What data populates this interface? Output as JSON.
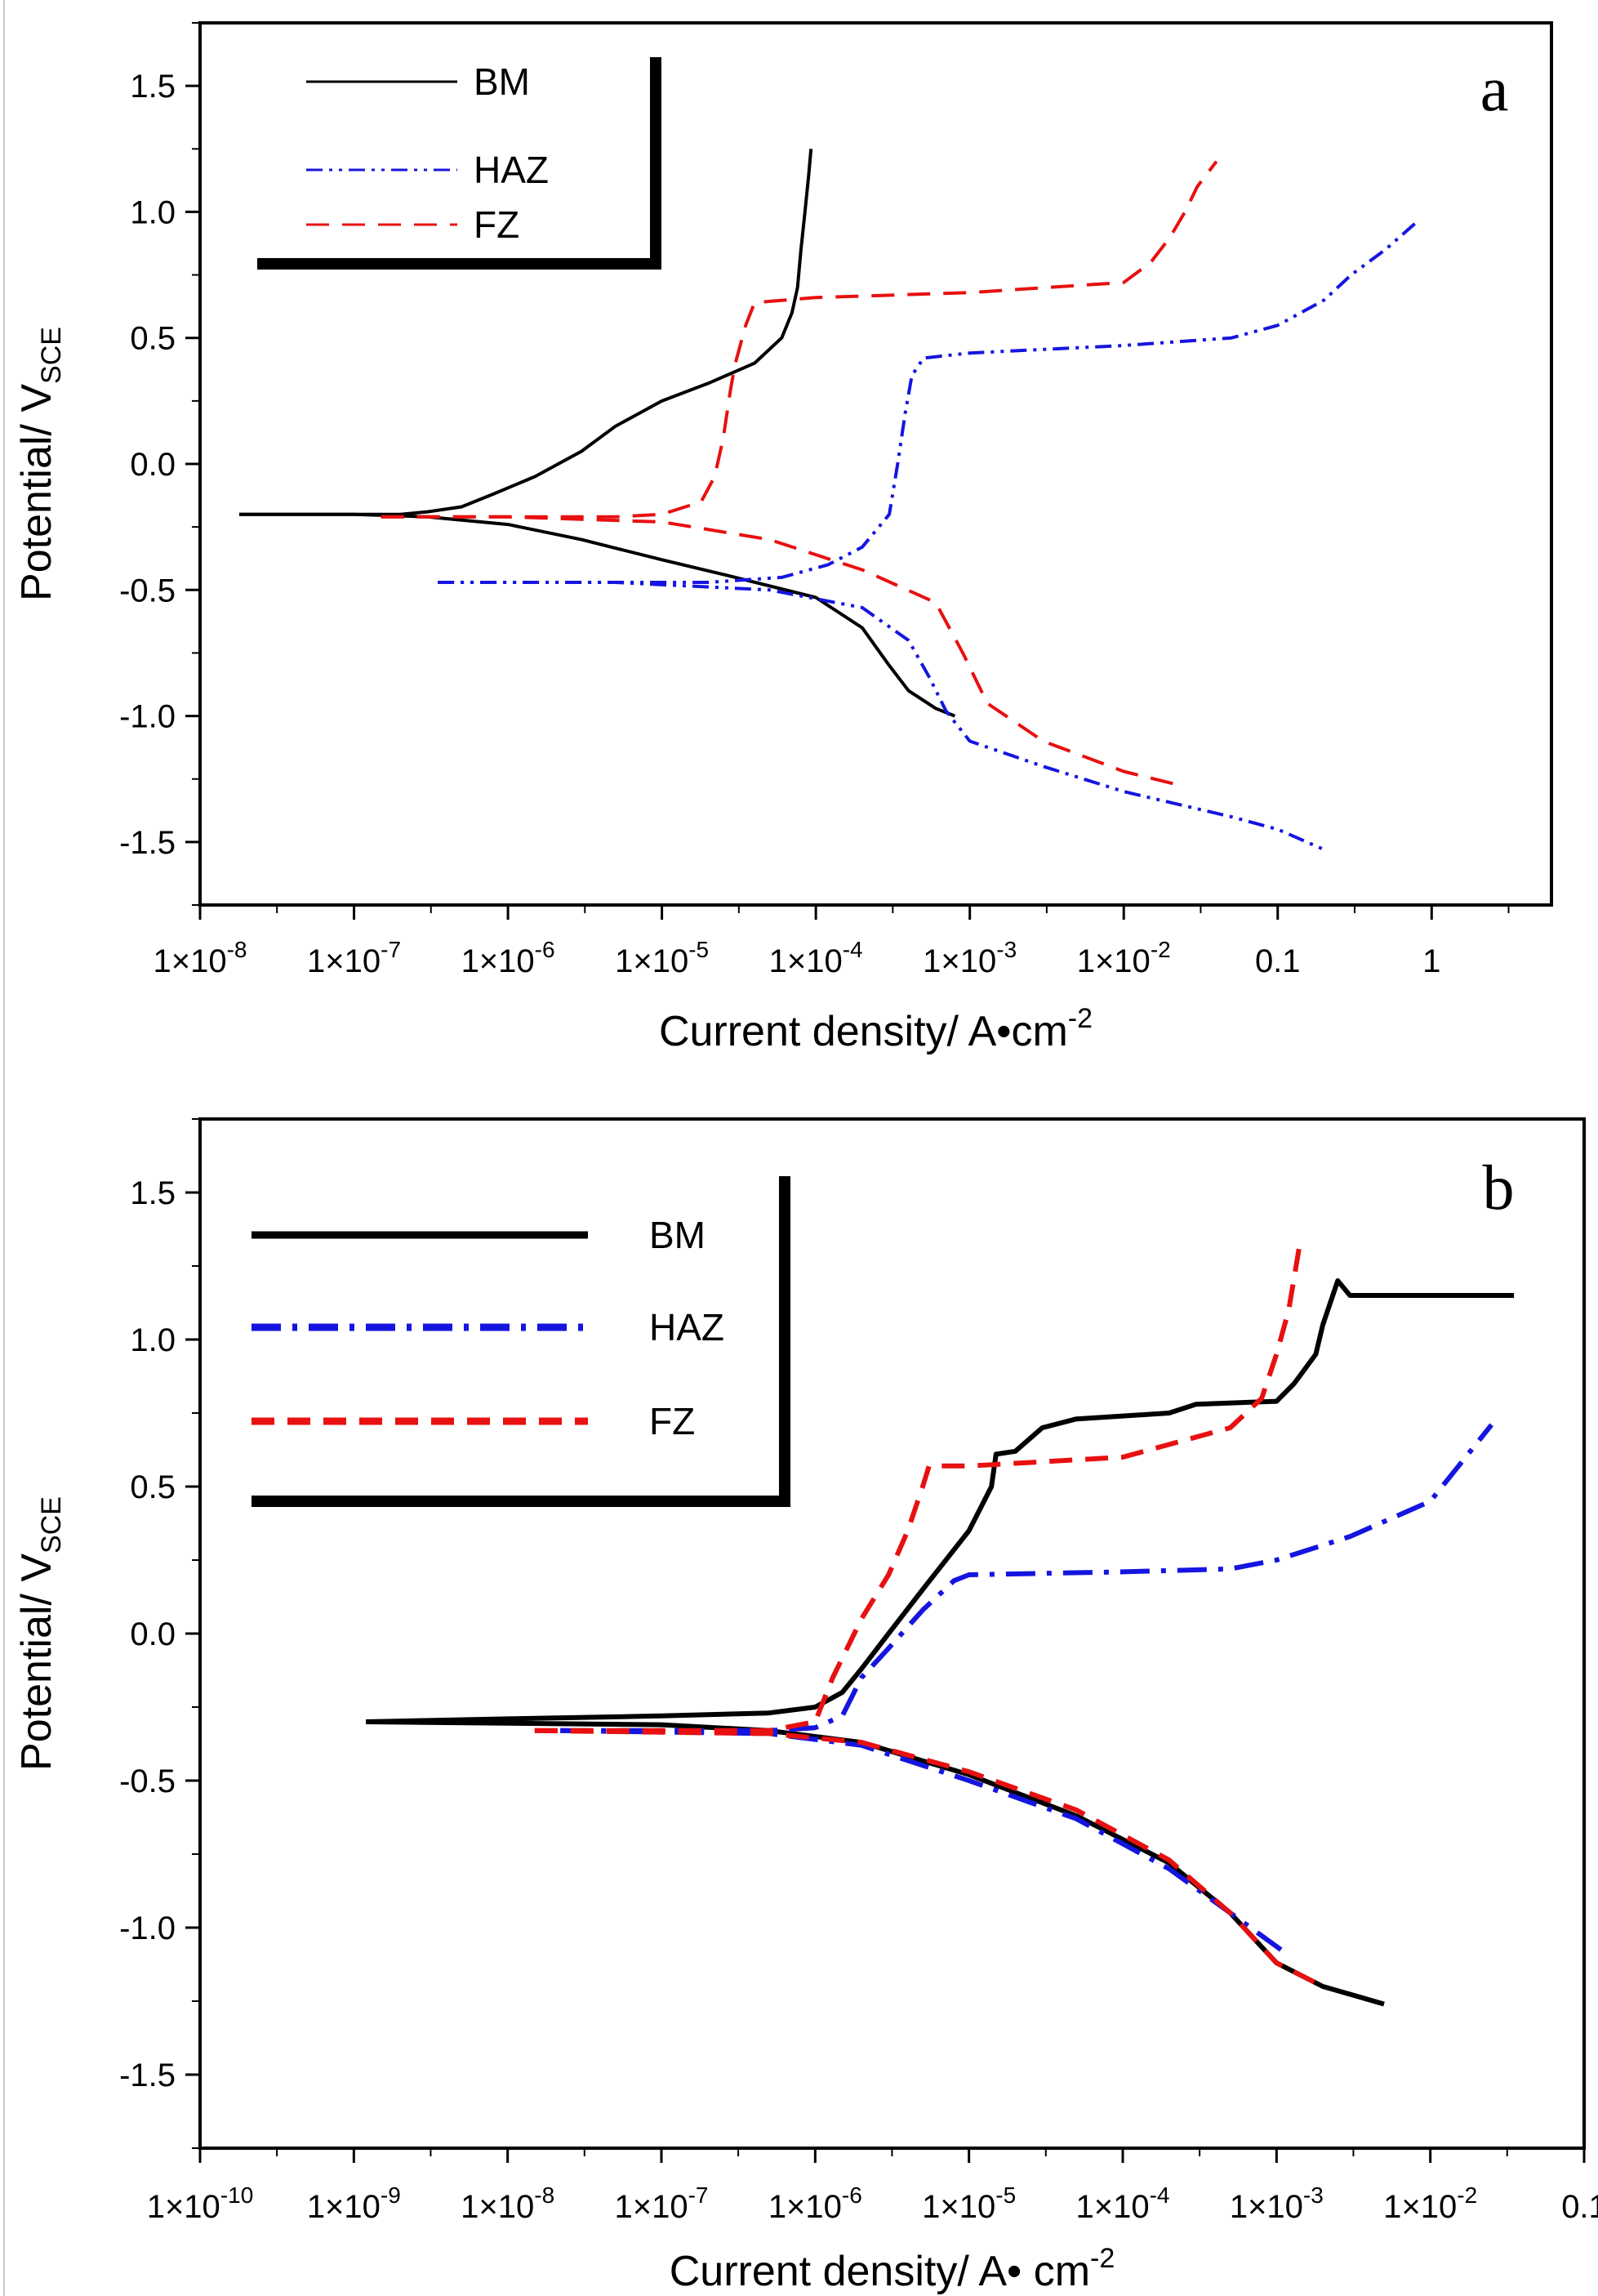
{
  "chart_data": [
    {
      "type": "line",
      "panel_label": "a",
      "xscale": "log",
      "xlabel": {
        "main": "Current density/ A•cm",
        "sup": "-2"
      },
      "ylabel": {
        "main": "Potential/ V",
        "sub": "SCE"
      },
      "xlim": [
        1e-08,
        6
      ],
      "ylim": [
        -1.75,
        1.75
      ],
      "x_ticks": [
        {
          "value": 1e-08,
          "base": "1×10",
          "exp": "-8"
        },
        {
          "value": 1e-07,
          "base": "1×10",
          "exp": "-7"
        },
        {
          "value": 1e-06,
          "base": "1×10",
          "exp": "-6"
        },
        {
          "value": 1e-05,
          "base": "1×10",
          "exp": "-5"
        },
        {
          "value": 0.0001,
          "base": "1×10",
          "exp": "-4"
        },
        {
          "value": 0.001,
          "base": "1×10",
          "exp": "-3"
        },
        {
          "value": 0.01,
          "base": "1×10",
          "exp": "-2"
        },
        {
          "value": 0.1,
          "base": "0.1",
          "exp": ""
        },
        {
          "value": 1,
          "base": "1",
          "exp": ""
        }
      ],
      "y_ticks": [
        {
          "value": 1.5,
          "label": "1.5"
        },
        {
          "value": 1.0,
          "label": "1.0"
        },
        {
          "value": 0.5,
          "label": "0.5"
        },
        {
          "value": 0.0,
          "label": "0.0"
        },
        {
          "value": -0.5,
          "label": "-0.5"
        },
        {
          "value": -1.0,
          "label": "-1.0"
        },
        {
          "value": -1.5,
          "label": "-1.5"
        }
      ],
      "legend": {
        "position": "top-left"
      },
      "series": [
        {
          "name": "BM",
          "color": "#000000",
          "dash": "solid",
          "branches": [
            [
              [
                1.8e-08,
                -0.2
              ],
              [
                1e-07,
                -0.2
              ],
              [
                2e-07,
                -0.2
              ],
              [
                3e-07,
                -0.19
              ],
              [
                5e-07,
                -0.17
              ],
              [
                8e-07,
                -0.12
              ],
              [
                1.5e-06,
                -0.05
              ],
              [
                3e-06,
                0.05
              ],
              [
                5e-06,
                0.15
              ],
              [
                1e-05,
                0.25
              ],
              [
                2e-05,
                0.32
              ],
              [
                4e-05,
                0.4
              ],
              [
                6e-05,
                0.5
              ],
              [
                7e-05,
                0.6
              ],
              [
                7.6e-05,
                0.7
              ],
              [
                8e-05,
                0.85
              ],
              [
                8.5e-05,
                1.0
              ],
              [
                9e-05,
                1.15
              ],
              [
                9.3e-05,
                1.25
              ]
            ],
            [
              [
                1.8e-08,
                -0.2
              ],
              [
                1e-07,
                -0.2
              ],
              [
                3e-07,
                -0.21
              ],
              [
                1e-06,
                -0.24
              ],
              [
                3e-06,
                -0.3
              ],
              [
                1e-05,
                -0.38
              ],
              [
                3e-05,
                -0.45
              ],
              [
                0.0001,
                -0.53
              ],
              [
                0.0002,
                -0.65
              ],
              [
                0.0003,
                -0.8
              ],
              [
                0.0004,
                -0.9
              ],
              [
                0.0006,
                -0.97
              ],
              [
                0.0008,
                -1.0
              ]
            ]
          ]
        },
        {
          "name": "HAZ",
          "color": "#1515e0",
          "dash": "dashdotdot",
          "branches": [
            [
              [
                3.5e-07,
                -0.47
              ],
              [
                1e-06,
                -0.47
              ],
              [
                5e-06,
                -0.47
              ],
              [
                2e-05,
                -0.47
              ],
              [
                6e-05,
                -0.45
              ],
              [
                0.00012,
                -0.4
              ],
              [
                0.0002,
                -0.33
              ],
              [
                0.0003,
                -0.2
              ],
              [
                0.00034,
                0.0
              ],
              [
                0.00038,
                0.2
              ],
              [
                0.00042,
                0.35
              ],
              [
                0.0005,
                0.42
              ],
              [
                0.001,
                0.44
              ],
              [
                0.01,
                0.47
              ],
              [
                0.05,
                0.5
              ],
              [
                0.1,
                0.55
              ],
              [
                0.2,
                0.65
              ],
              [
                0.3,
                0.75
              ],
              [
                0.5,
                0.85
              ],
              [
                0.8,
                0.96
              ]
            ],
            [
              [
                3.5e-07,
                -0.47
              ],
              [
                5e-06,
                -0.47
              ],
              [
                5e-05,
                -0.5
              ],
              [
                0.0002,
                -0.57
              ],
              [
                0.0004,
                -0.7
              ],
              [
                0.00055,
                -0.85
              ],
              [
                0.0007,
                -0.98
              ],
              [
                0.001,
                -1.1
              ],
              [
                0.003,
                -1.2
              ],
              [
                0.01,
                -1.3
              ],
              [
                0.05,
                -1.4
              ],
              [
                0.1,
                -1.45
              ],
              [
                0.2,
                -1.53
              ]
            ]
          ]
        },
        {
          "name": "FZ",
          "color": "#e81010",
          "dash": "dashed",
          "branches": [
            [
              [
                1.5e-07,
                -0.21
              ],
              [
                1e-06,
                -0.21
              ],
              [
                5e-06,
                -0.21
              ],
              [
                1e-05,
                -0.2
              ],
              [
                1.8e-05,
                -0.15
              ],
              [
                2.2e-05,
                -0.05
              ],
              [
                2.5e-05,
                0.1
              ],
              [
                2.8e-05,
                0.3
              ],
              [
                3e-05,
                0.4
              ],
              [
                3.5e-05,
                0.55
              ],
              [
                4e-05,
                0.64
              ],
              [
                0.0001,
                0.66
              ],
              [
                0.001,
                0.68
              ],
              [
                0.01,
                0.72
              ],
              [
                0.015,
                0.8
              ],
              [
                0.02,
                0.9
              ],
              [
                0.025,
                1.0
              ],
              [
                0.03,
                1.1
              ],
              [
                0.04,
                1.2
              ]
            ],
            [
              [
                1.5e-07,
                -0.21
              ],
              [
                1e-06,
                -0.21
              ],
              [
                1e-05,
                -0.23
              ],
              [
                5e-05,
                -0.3
              ],
              [
                0.0002,
                -0.42
              ],
              [
                0.0006,
                -0.55
              ],
              [
                0.0009,
                -0.75
              ],
              [
                0.0013,
                -0.95
              ],
              [
                0.003,
                -1.1
              ],
              [
                0.01,
                -1.22
              ],
              [
                0.025,
                -1.28
              ]
            ]
          ]
        }
      ]
    },
    {
      "type": "line",
      "panel_label": "b",
      "xscale": "log",
      "xlabel": {
        "main": "Current density/ A• cm",
        "sup": "-2"
      },
      "ylabel": {
        "main": "Potential/ V",
        "sub": "SCE"
      },
      "xlim": [
        1e-10,
        0.1
      ],
      "ylim": [
        -1.75,
        1.75
      ],
      "x_ticks": [
        {
          "value": 1e-10,
          "base": "1×10",
          "exp": "-10"
        },
        {
          "value": 1e-09,
          "base": "1×10",
          "exp": "-9"
        },
        {
          "value": 1e-08,
          "base": "1×10",
          "exp": "-8"
        },
        {
          "value": 1e-07,
          "base": "1×10",
          "exp": "-7"
        },
        {
          "value": 1e-06,
          "base": "1×10",
          "exp": "-6"
        },
        {
          "value": 1e-05,
          "base": "1×10",
          "exp": "-5"
        },
        {
          "value": 0.0001,
          "base": "1×10",
          "exp": "-4"
        },
        {
          "value": 0.001,
          "base": "1×10",
          "exp": "-3"
        },
        {
          "value": 0.01,
          "base": "1×10",
          "exp": "-2"
        },
        {
          "value": 0.1,
          "base": "0.1",
          "exp": ""
        }
      ],
      "y_ticks": [
        {
          "value": 1.5,
          "label": "1.5"
        },
        {
          "value": 1.0,
          "label": "1.0"
        },
        {
          "value": 0.5,
          "label": "0.5"
        },
        {
          "value": 0.0,
          "label": "0.0"
        },
        {
          "value": -0.5,
          "label": "-0.5"
        },
        {
          "value": -1.0,
          "label": "-1.0"
        },
        {
          "value": -1.5,
          "label": "-1.5"
        }
      ],
      "legend": {
        "position": "top-left"
      },
      "series": [
        {
          "name": "BM",
          "color": "#000000",
          "dash": "solid",
          "branches": [
            [
              [
                1.2e-09,
                -0.3
              ],
              [
                1e-08,
                -0.29
              ],
              [
                1e-07,
                -0.28
              ],
              [
                5e-07,
                -0.27
              ],
              [
                1e-06,
                -0.25
              ],
              [
                1.5e-06,
                -0.2
              ],
              [
                2e-06,
                -0.12
              ],
              [
                3e-06,
                0.0
              ],
              [
                5e-06,
                0.15
              ],
              [
                1e-05,
                0.35
              ],
              [
                1.4e-05,
                0.5
              ],
              [
                1.5e-05,
                0.61
              ],
              [
                2e-05,
                0.62
              ],
              [
                3e-05,
                0.7
              ],
              [
                5e-05,
                0.73
              ],
              [
                0.0001,
                0.74
              ],
              [
                0.0002,
                0.75
              ],
              [
                0.0003,
                0.78
              ],
              [
                0.001,
                0.79
              ],
              [
                0.0013,
                0.85
              ],
              [
                0.0018,
                0.95
              ],
              [
                0.002,
                1.05
              ],
              [
                0.0025,
                1.2
              ],
              [
                0.003,
                1.15
              ],
              [
                0.01,
                1.15
              ],
              [
                0.035,
                1.15
              ]
            ],
            [
              [
                1.2e-09,
                -0.3
              ],
              [
                1e-07,
                -0.31
              ],
              [
                5e-07,
                -0.33
              ],
              [
                2e-06,
                -0.37
              ],
              [
                1e-05,
                -0.48
              ],
              [
                5e-05,
                -0.62
              ],
              [
                0.0002,
                -0.78
              ],
              [
                0.0005,
                -0.95
              ],
              [
                0.001,
                -1.12
              ],
              [
                0.002,
                -1.2
              ],
              [
                0.005,
                -1.26
              ]
            ]
          ]
        },
        {
          "name": "HAZ",
          "color": "#1515e0",
          "dash": "dashdot",
          "branches": [
            [
              [
                2.2e-08,
                -0.33
              ],
              [
                5e-07,
                -0.33
              ],
              [
                1e-06,
                -0.32
              ],
              [
                1.5e-06,
                -0.28
              ],
              [
                2e-06,
                -0.15
              ],
              [
                3e-06,
                -0.05
              ],
              [
                5e-06,
                0.08
              ],
              [
                8e-06,
                0.18
              ],
              [
                1e-05,
                0.2
              ],
              [
                0.0001,
                0.21
              ],
              [
                0.0005,
                0.22
              ],
              [
                0.001,
                0.25
              ],
              [
                0.003,
                0.33
              ],
              [
                0.01,
                0.45
              ],
              [
                0.025,
                0.71
              ]
            ],
            [
              [
                2.2e-08,
                -0.33
              ],
              [
                5e-07,
                -0.34
              ],
              [
                2e-06,
                -0.38
              ],
              [
                1e-05,
                -0.5
              ],
              [
                5e-05,
                -0.63
              ],
              [
                0.0002,
                -0.8
              ],
              [
                0.0006,
                -0.98
              ],
              [
                0.0011,
                -1.08
              ]
            ]
          ]
        },
        {
          "name": "FZ",
          "color": "#e81010",
          "dash": "dashed",
          "branches": [
            [
              [
                1.5e-08,
                -0.33
              ],
              [
                1e-07,
                -0.33
              ],
              [
                5e-07,
                -0.33
              ],
              [
                1e-06,
                -0.3
              ],
              [
                1.3e-06,
                -0.15
              ],
              [
                2e-06,
                0.05
              ],
              [
                3e-06,
                0.2
              ],
              [
                4e-06,
                0.35
              ],
              [
                5e-06,
                0.5
              ],
              [
                5.5e-06,
                0.57
              ],
              [
                1e-05,
                0.57
              ],
              [
                0.0001,
                0.6
              ],
              [
                0.0005,
                0.7
              ],
              [
                0.0008,
                0.8
              ],
              [
                0.001,
                0.95
              ],
              [
                0.0012,
                1.1
              ],
              [
                0.0014,
                1.31
              ]
            ],
            [
              [
                1.5e-08,
                -0.33
              ],
              [
                5e-07,
                -0.34
              ],
              [
                2e-06,
                -0.37
              ],
              [
                1e-05,
                -0.47
              ],
              [
                5e-05,
                -0.6
              ],
              [
                0.0002,
                -0.77
              ],
              [
                0.0005,
                -0.95
              ],
              [
                0.001,
                -1.12
              ],
              [
                0.002,
                -1.2
              ]
            ]
          ]
        }
      ]
    }
  ]
}
